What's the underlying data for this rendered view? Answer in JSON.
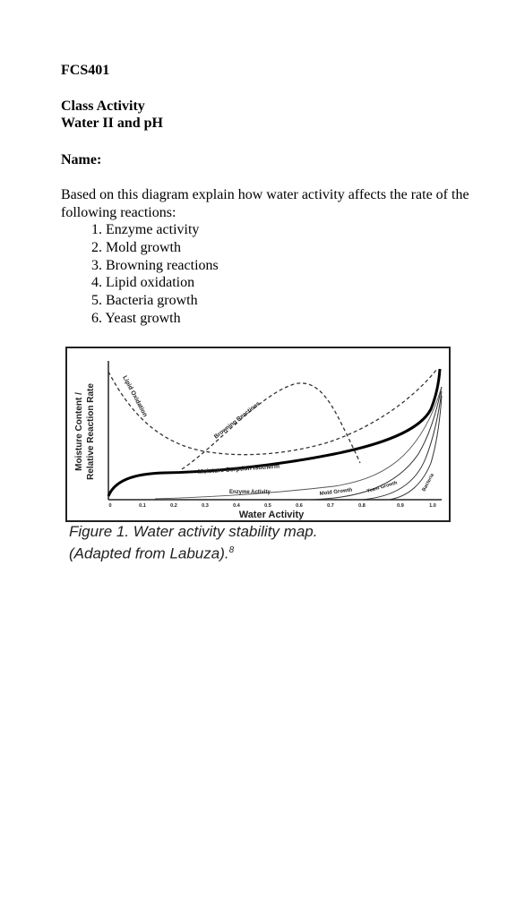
{
  "document": {
    "course_code": "FCS401",
    "activity_lines": [
      "Class Activity",
      "Water II and pH"
    ],
    "name_label": "Name:",
    "prompt": "Based on this diagram explain how water activity affects the rate of the following reactions:",
    "reactions": [
      "1. Enzyme activity",
      "2. Mold growth",
      "3. Browning reactions",
      "4. Lipid oxidation",
      "5. Bacteria growth",
      "6. Yeast growth"
    ]
  },
  "figure": {
    "y_axis_label_line1": "Moisture Content /",
    "y_axis_label_line2": "Relative Reaction Rate",
    "x_axis_label": "Water Activity",
    "x_ticks": [
      "0",
      "0.1",
      "0.2",
      "0.3",
      "0.4",
      "0.5",
      "0.6",
      "0.7",
      "0.8",
      "0.9",
      "1.0"
    ],
    "curve_labels": {
      "lipid_oxidation": "Lipid Oxidation",
      "browning": "Browning Reactions",
      "sorption": "Moisture Sorption Isotherm",
      "enzyme": "Enzyme Activity",
      "mold": "Mold Growth",
      "yeast": "Yeast Growth",
      "bacteria": "Bacteria"
    },
    "caption_line1": "Figure 1. Water activity stability map.",
    "caption_line2": "(Adapted from Labuza).",
    "caption_ref": "8"
  }
}
